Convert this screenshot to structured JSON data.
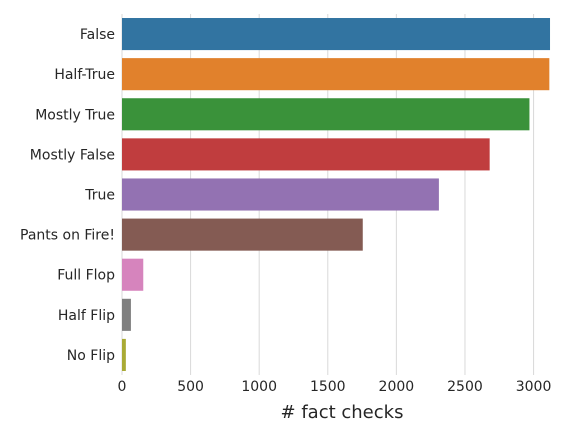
{
  "chart_data": {
    "type": "bar",
    "orientation": "horizontal",
    "xlabel": "# fact checks",
    "ylabel": "",
    "xlim": [
      0,
      3200
    ],
    "xticks": [
      0,
      500,
      1000,
      1500,
      2000,
      2500,
      3000
    ],
    "grid": true,
    "categories": [
      "False",
      "Half-True",
      "Mostly True",
      "Mostly False",
      "True",
      "Pants on Fire!",
      "Full Flop",
      "Half Flip",
      "No Flip"
    ],
    "values": [
      3120,
      3115,
      2970,
      2680,
      2310,
      1755,
      155,
      65,
      28
    ],
    "colors": [
      "#3274a1",
      "#e1812c",
      "#3a923a",
      "#c03d3e",
      "#9372b2",
      "#845b53",
      "#d684bd",
      "#7f7f7f",
      "#a9aa35"
    ]
  }
}
